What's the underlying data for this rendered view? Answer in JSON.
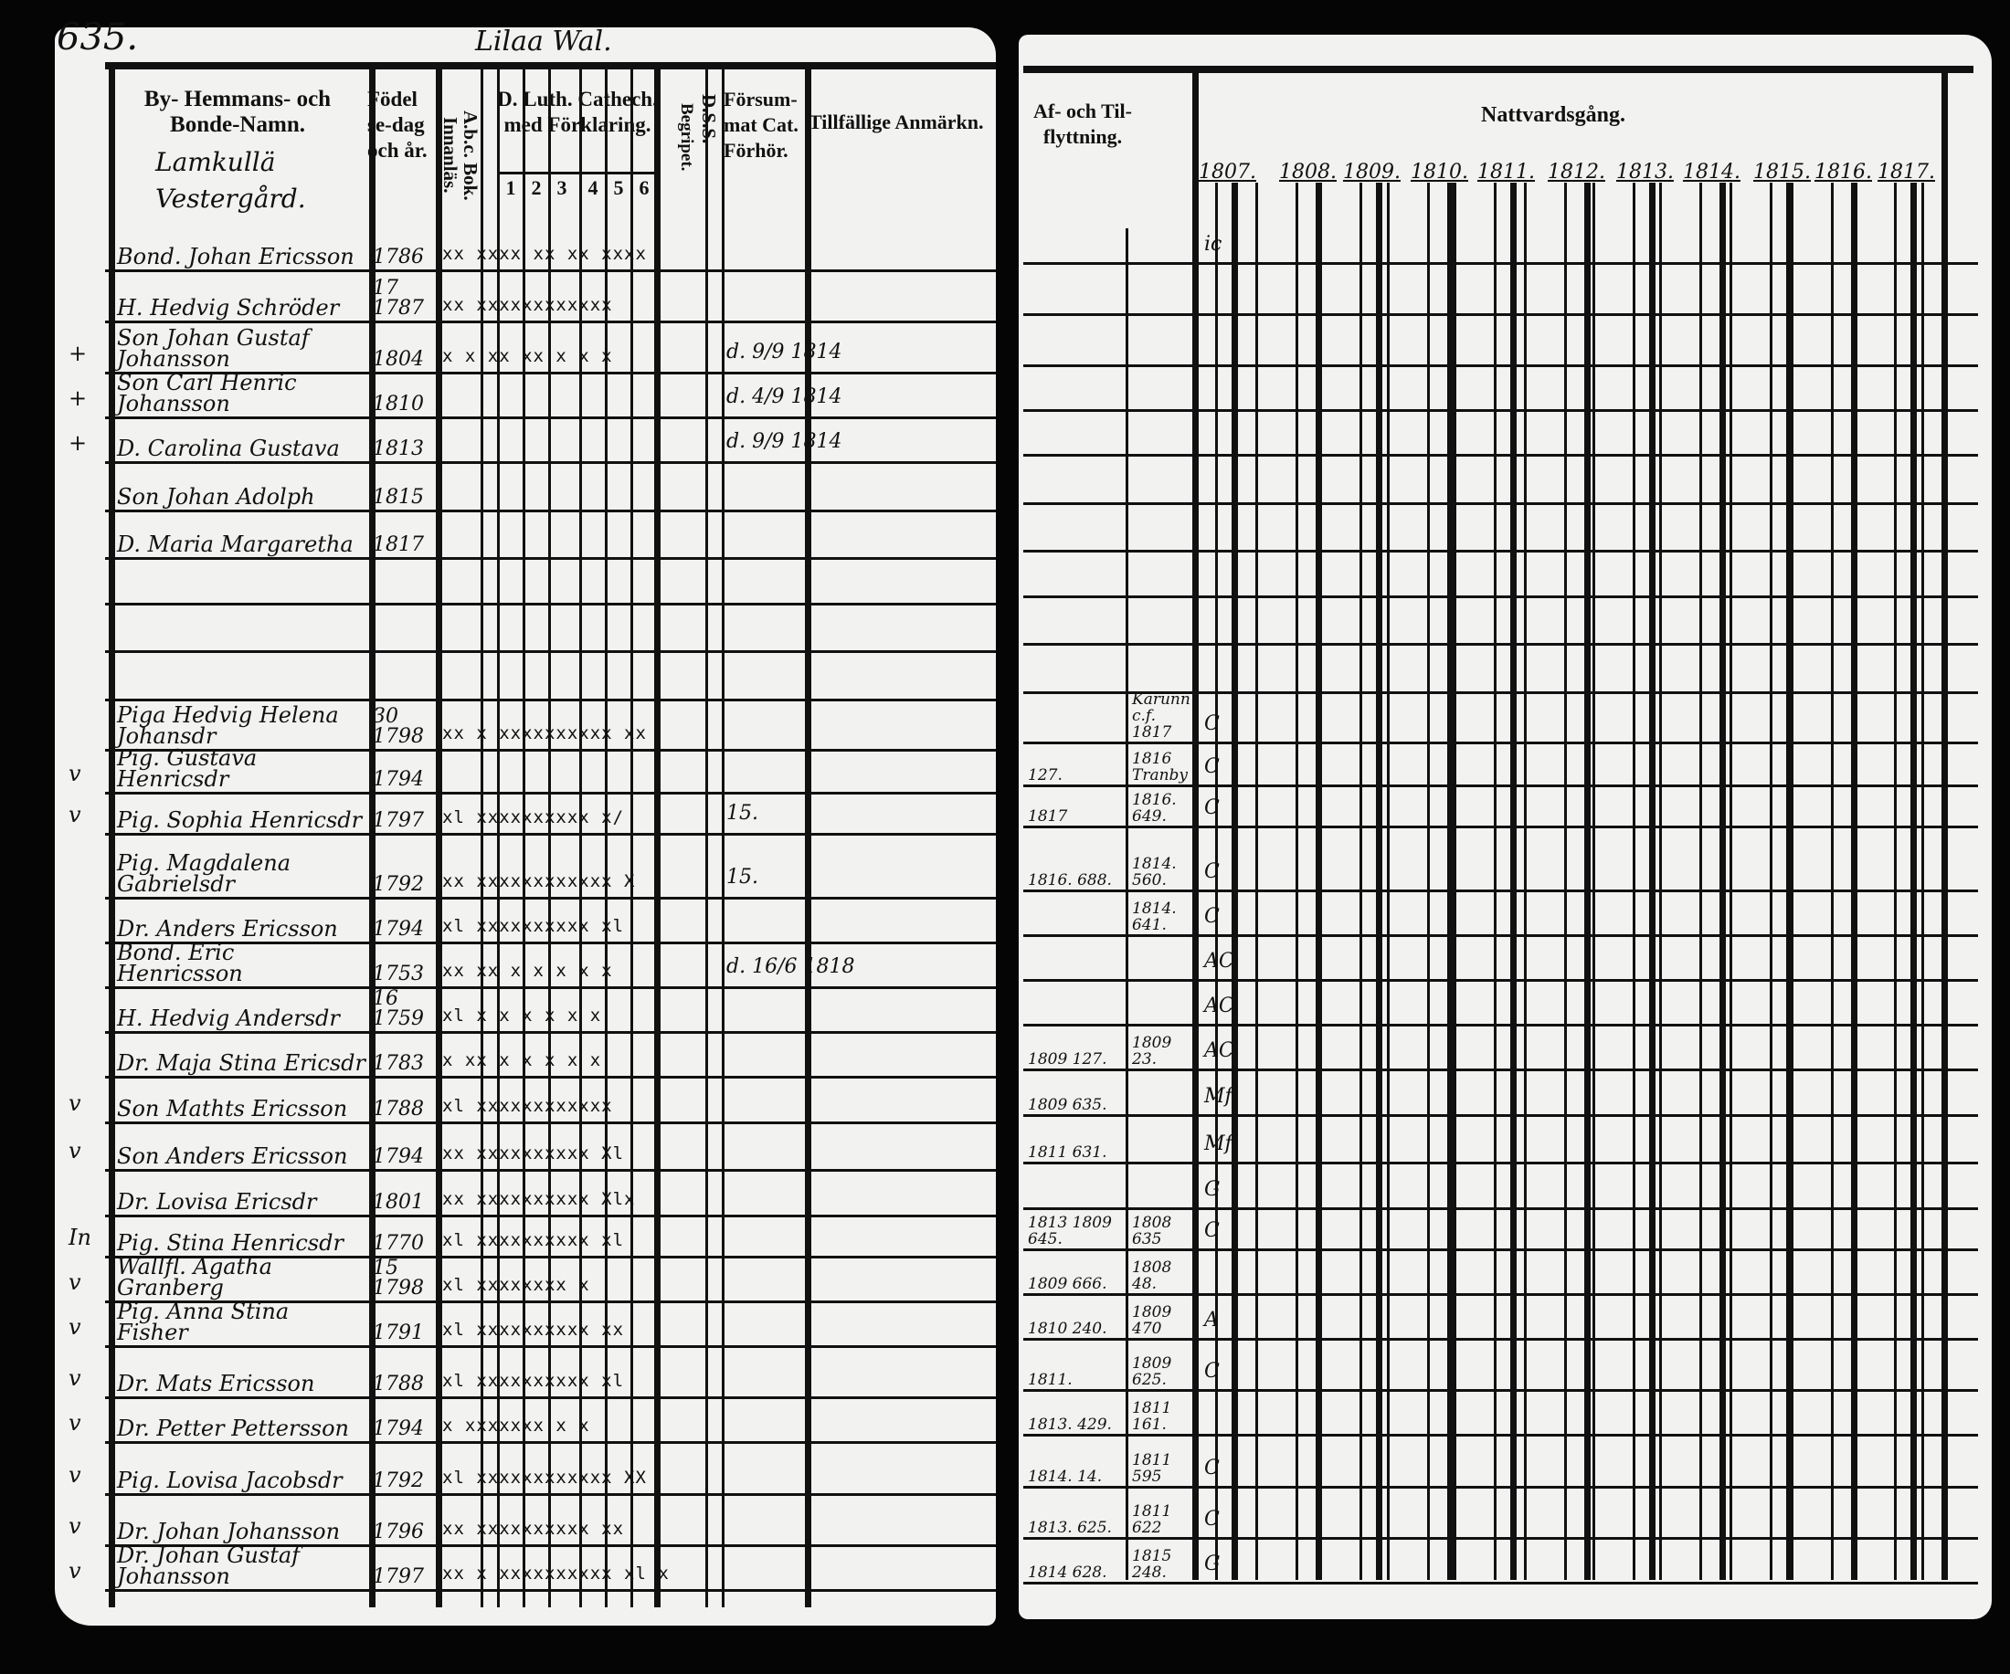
{
  "left_page": {
    "page_number": "635.",
    "parish_heading": "Lilaa Wal.",
    "headers": {
      "name": "By- Hemmans- och Bonde-Namn.",
      "birth": "Födel se-dag och år.",
      "abc": "A.b.c. Bok. Innanläs.",
      "catechism": "D. Luth. Cathech. med Förklaring.",
      "catechism_parts": [
        "1",
        "2",
        "3",
        "4",
        "5",
        "6"
      ],
      "begripet": "Begripet.",
      "dss": "D.S.S.",
      "forsummat": "Försum-mat Cat. Förhör.",
      "anmarkningar": "Tillfällige Anmärkn."
    },
    "farm_name": "Lamkullä Vestergård.",
    "rows": [
      {
        "mark": "",
        "name": "Bond. Johan Ericsson",
        "born": "1786",
        "read": "xx xxxx xx xx xxxx",
        "note": ""
      },
      {
        "mark": "",
        "name": "H. Hedvig Schröder",
        "born": "17 1787",
        "read": "xx xxxxxxxxxxxx",
        "note": ""
      },
      {
        "mark": "+",
        "name": "Son Johan Gustaf Johansson",
        "born": "1804",
        "read": "x x xx xx x x x",
        "note": "d. 9/9 1814"
      },
      {
        "mark": "+",
        "name": "Son Carl Henric Johansson",
        "born": "1810",
        "read": "",
        "note": "d. 4/9 1814"
      },
      {
        "mark": "+",
        "name": "D. Carolina Gustava",
        "born": "1813",
        "read": "",
        "note": "d. 9/9 1814"
      },
      {
        "mark": "",
        "name": "Son Johan Adolph",
        "born": "1815",
        "read": "",
        "note": ""
      },
      {
        "mark": "",
        "name": "D. Maria Margaretha",
        "born": "1817",
        "read": "",
        "note": ""
      },
      {
        "mark": "",
        "name": "",
        "born": "",
        "read": "",
        "note": ""
      },
      {
        "mark": "",
        "name": "",
        "born": "",
        "read": "",
        "note": ""
      },
      {
        "mark": "",
        "name": "",
        "born": "",
        "read": "",
        "note": ""
      },
      {
        "mark": "",
        "name": "Piga Hedvig Helena Johansdr",
        "born": "30 1798",
        "read": "xx x xxxxxxxxxx xx",
        "note": ""
      },
      {
        "mark": "v",
        "name": "Pig. Gustava Henricsdr",
        "born": "1794",
        "read": "",
        "note": ""
      },
      {
        "mark": "v",
        "name": "Pig. Sophia Henricsdr",
        "born": "1797",
        "read": "xl xxxxxxxxxx x/",
        "note": "15."
      },
      {
        "mark": "",
        "name": "Pig. Magdalena Gabrielsdr",
        "born": "1792",
        "read": "xx xxxxxxxxxxxx X",
        "note": "15."
      },
      {
        "mark": "",
        "name": "Dr. Anders Ericsson",
        "born": "1794",
        "read": "xl xxxxxxxxxx xl",
        "note": ""
      },
      {
        "mark": "",
        "name": "Bond. Eric Henricsson",
        "born": "1753",
        "read": "xx xx x x x x x",
        "note": "d. 16/6 1818"
      },
      {
        "mark": "",
        "name": "H. Hedvig Andersdr",
        "born": "16 1759",
        "read": "xl x x x x x x",
        "note": ""
      },
      {
        "mark": "",
        "name": "Dr. Maja Stina Ericsdr",
        "born": "1783",
        "read": "x xx x x x x x",
        "note": ""
      },
      {
        "mark": "v",
        "name": "Son Mathts Ericsson",
        "born": "1788",
        "read": "xl xxxxxxxxxxxx",
        "note": ""
      },
      {
        "mark": "v",
        "name": "Son Anders Ericsson",
        "born": "1794",
        "read": "xx xxxxxxxxxx Xl",
        "note": ""
      },
      {
        "mark": "",
        "name": "Dr. Lovisa Ericsdr",
        "born": "1801",
        "read": "xx xxxxxxxxxx Xlx",
        "note": ""
      },
      {
        "mark": "In",
        "name": "Pig. Stina Henricsdr",
        "born": "1770",
        "read": "xl xxxxxxxxxx xl",
        "note": ""
      },
      {
        "mark": "v",
        "name": "Wallfl. Agatha Granberg",
        "born": "15 1798",
        "read": "xl xxxxxxxx x",
        "note": ""
      },
      {
        "mark": "v",
        "name": "Pig. Anna Stina Fisher",
        "born": "1791",
        "read": "xl xxxxxxxxxx xx",
        "note": ""
      },
      {
        "mark": "v",
        "name": "Dr. Mats Ericsson",
        "born": "1788",
        "read": "xl xxxxxxxxxx xl",
        "note": ""
      },
      {
        "mark": "v",
        "name": "Dr. Petter Pettersson",
        "born": "1794",
        "read": "x xxxxxxx x x",
        "note": ""
      },
      {
        "mark": "v",
        "name": "Pig. Lovisa Jacobsdr",
        "born": "1792",
        "read": "xl xxxxxxxxxxxx XX",
        "note": ""
      },
      {
        "mark": "v",
        "name": "Dr. Johan Johansson",
        "born": "1796",
        "read": "xx xxxxxxxxxx xx",
        "note": ""
      },
      {
        "mark": "v",
        "name": "Dr. Johan Gustaf Johansson",
        "born": "1797",
        "read": "xx x xxxxxxxxxx xl x",
        "note": ""
      }
    ]
  },
  "right_page": {
    "headers": {
      "flyttning": "Af- och Til-flyttning.",
      "nattvardsgang": "Nattvardsgång."
    },
    "years": [
      "1807.",
      "1808.",
      "1809.",
      "1810.",
      "1811.",
      "1812.",
      "1813.",
      "1814.",
      "1815.",
      "1816.",
      "1817."
    ],
    "rows": [
      {
        "from": "",
        "to": "",
        "c": "ic"
      },
      {
        "from": "",
        "to": "",
        "c": ""
      },
      {
        "from": "",
        "to": "",
        "c": ""
      },
      {
        "from": "",
        "to": "",
        "c": ""
      },
      {
        "from": "",
        "to": "",
        "c": ""
      },
      {
        "from": "",
        "to": "",
        "c": ""
      },
      {
        "from": "",
        "to": "",
        "c": ""
      },
      {
        "from": "",
        "to": "",
        "c": ""
      },
      {
        "from": "",
        "to": "",
        "c": ""
      },
      {
        "from": "",
        "to": "",
        "c": ""
      },
      {
        "from": "",
        "to": "Karunn c.f. 1817",
        "c": "C"
      },
      {
        "from": "127.",
        "to": "1816 Tranby",
        "c": "C"
      },
      {
        "from": "1817",
        "to": "1816. 649.",
        "c": "C"
      },
      {
        "from": "1816. 688.",
        "to": "1814. 560.",
        "c": "C"
      },
      {
        "from": "",
        "to": "1814. 641.",
        "c": "C"
      },
      {
        "from": "",
        "to": "",
        "c": "AC"
      },
      {
        "from": "",
        "to": "",
        "c": "AC"
      },
      {
        "from": "1809 127.",
        "to": "1809 23.",
        "c": "AC"
      },
      {
        "from": "1809 635.",
        "to": "",
        "c": "Mf"
      },
      {
        "from": "1811 631.",
        "to": "",
        "c": "Mf"
      },
      {
        "from": "",
        "to": "",
        "c": "G"
      },
      {
        "from": "1813 1809 645.",
        "to": "1808 635",
        "c": "C"
      },
      {
        "from": "1809 666.",
        "to": "1808 48.",
        "c": ""
      },
      {
        "from": "1810 240.",
        "to": "1809 470",
        "c": "A"
      },
      {
        "from": "1811.",
        "to": "1809 625.",
        "c": "C"
      },
      {
        "from": "1813. 429.",
        "to": "1811 161.",
        "c": ""
      },
      {
        "from": "1814. 14.",
        "to": "1811 595",
        "c": "C"
      },
      {
        "from": "1813. 625.",
        "to": "1811 622",
        "c": "C"
      },
      {
        "from": "1814 628.",
        "to": "1815 248.",
        "c": "G"
      }
    ]
  },
  "colors": {
    "paper": "#f2f2f0",
    "ink": "#111111",
    "background": "#050505"
  }
}
